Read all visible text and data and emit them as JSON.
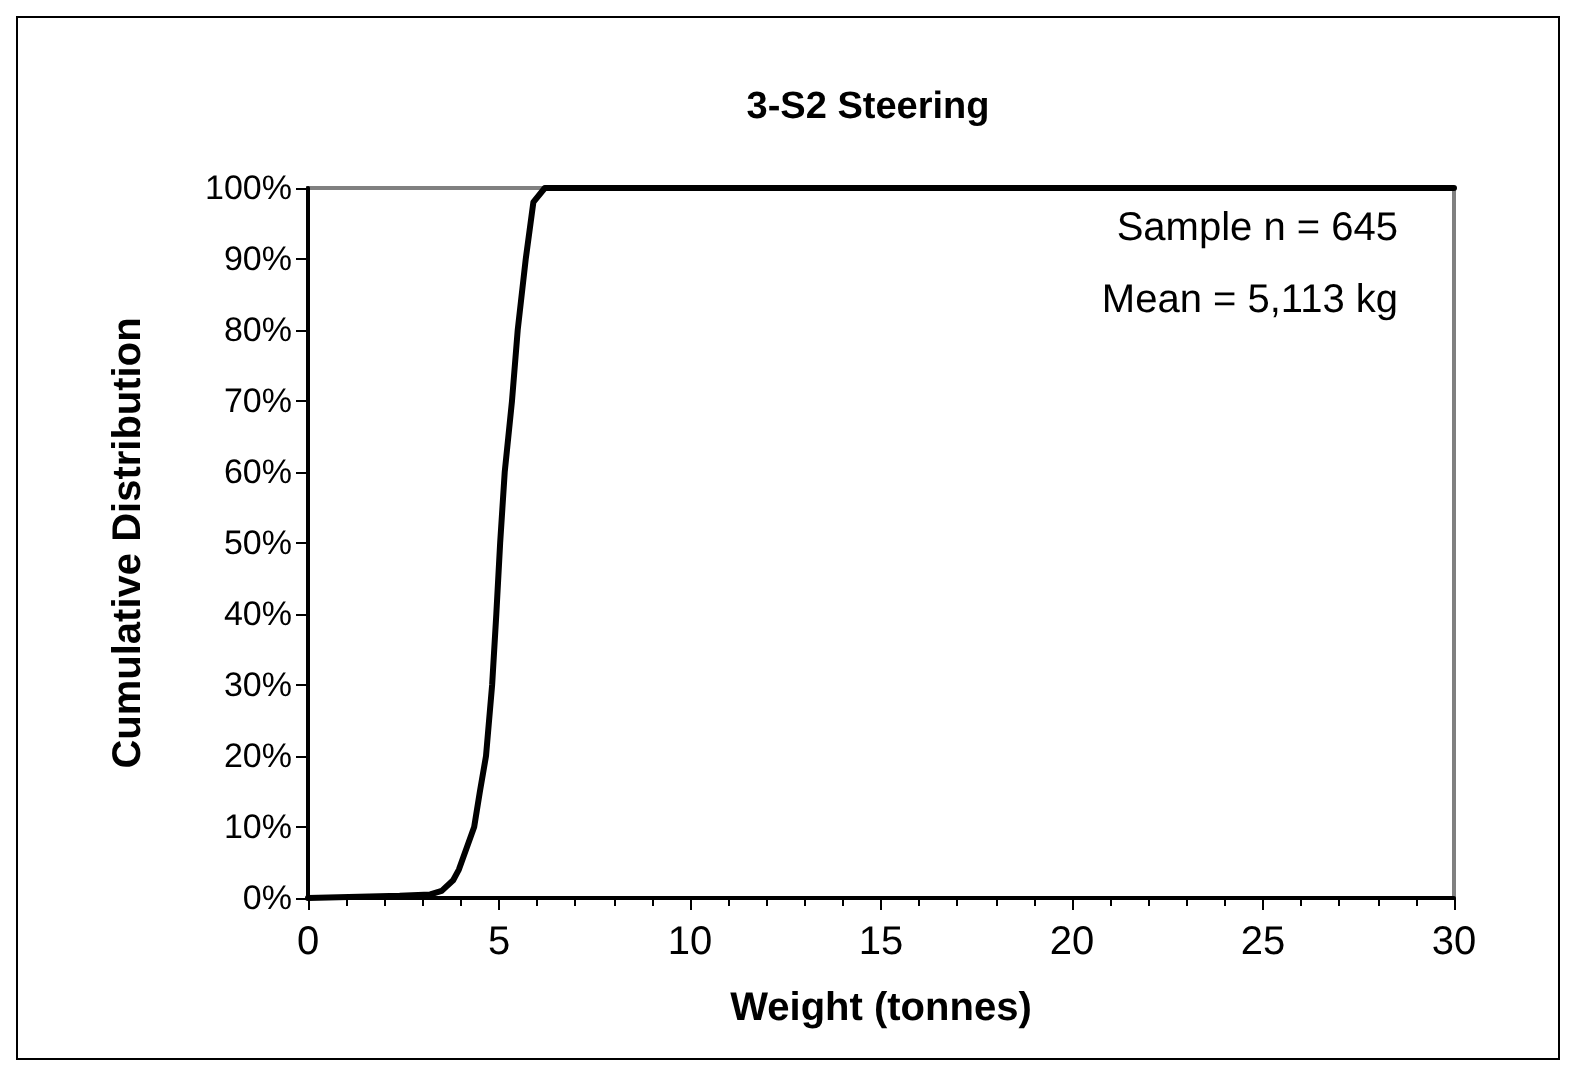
{
  "chart_data": {
    "type": "line",
    "title": "3-S2 Steering",
    "xlabel": "Weight (tonnes)",
    "ylabel": "Cumulative Distribution",
    "annotations": [
      "Sample n = 645",
      "Mean = 5,113 kg"
    ],
    "x": [
      0,
      2.4,
      3.2,
      3.5,
      3.8,
      3.95,
      4.15,
      4.35,
      4.5,
      4.66,
      4.82,
      4.93,
      5.03,
      5.15,
      5.34,
      5.49,
      5.7,
      5.9,
      6.2,
      30
    ],
    "series": [
      {
        "color": "#000000",
        "values": [
          0,
          0.3,
          0.5,
          1,
          2.5,
          4,
          7,
          10,
          15,
          20,
          30,
          40,
          50,
          60,
          70,
          80,
          90,
          98,
          100,
          100
        ]
      }
    ],
    "xlim": [
      0,
      30
    ],
    "xticks": [
      0,
      5,
      10,
      15,
      20,
      25,
      30
    ],
    "ylim": [
      0,
      100
    ],
    "yticks": [
      {
        "value": 0,
        "label": "0%"
      },
      {
        "value": 10,
        "label": "10%"
      },
      {
        "value": 20,
        "label": "20%"
      },
      {
        "value": 30,
        "label": "30%"
      },
      {
        "value": 40,
        "label": "40%"
      },
      {
        "value": 50,
        "label": "50%"
      },
      {
        "value": 60,
        "label": "60%"
      },
      {
        "value": 70,
        "label": "70%"
      },
      {
        "value": 80,
        "label": "80%"
      },
      {
        "value": 90,
        "label": "90%"
      },
      {
        "value": 100,
        "label": "100%"
      }
    ],
    "grid": false,
    "marker": "none",
    "line_style": "solid"
  }
}
